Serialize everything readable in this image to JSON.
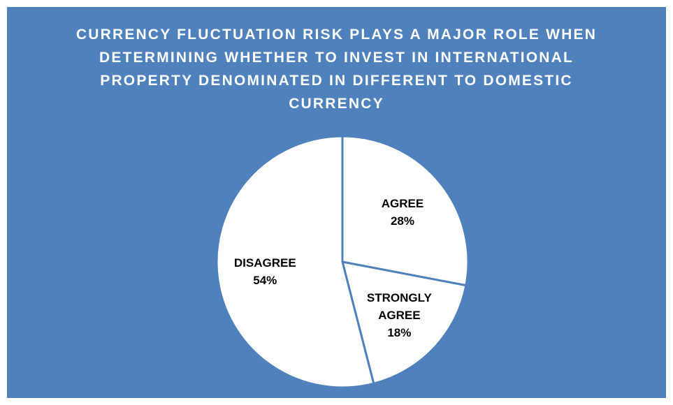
{
  "chart_data": {
    "type": "pie",
    "title": "CURRENCY FLUCTUATION RISK PLAYS A MAJOR ROLE WHEN DETERMINING WHETHER TO INVEST IN INTERNATIONAL PROPERTY DENOMINATED IN DIFFERENT TO DOMESTIC CURRENCY",
    "categories": [
      "AGREE",
      "STRONGLY AGREE",
      "DISAGREE"
    ],
    "values": [
      28,
      18,
      54
    ],
    "value_labels": [
      "28%",
      "18%",
      "54%"
    ],
    "colors": [
      "#ffffff",
      "#ffffff",
      "#ffffff"
    ]
  }
}
